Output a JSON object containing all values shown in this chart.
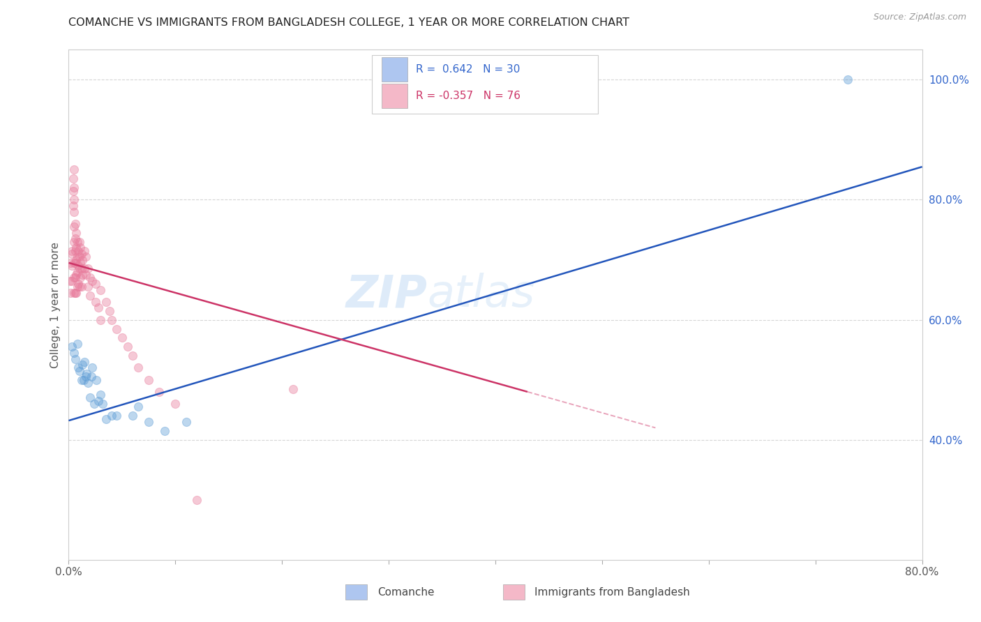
{
  "title": "COMANCHE VS IMMIGRANTS FROM BANGLADESH COLLEGE, 1 YEAR OR MORE CORRELATION CHART",
  "source": "Source: ZipAtlas.com",
  "ylabel": "College, 1 year or more",
  "xlim": [
    0.0,
    0.8
  ],
  "ylim": [
    0.2,
    1.05
  ],
  "xticks": [
    0.0,
    0.1,
    0.2,
    0.3,
    0.4,
    0.5,
    0.6,
    0.7,
    0.8
  ],
  "xticklabels": [
    "0.0%",
    "",
    "",
    "",
    "",
    "",
    "",
    "",
    "80.0%"
  ],
  "yticks_right": [
    0.4,
    0.6,
    0.8,
    1.0
  ],
  "yticklabels_right": [
    "40.0%",
    "60.0%",
    "80.0%",
    "100.0%"
  ],
  "legend_entries": [
    {
      "color": "#aec6f0",
      "text_color": "#3366cc",
      "label": "R =  0.642   N = 30"
    },
    {
      "color": "#f4b8c8",
      "text_color": "#cc3366",
      "label": "R = -0.357   N = 76"
    }
  ],
  "blue_scatter": [
    [
      0.003,
      0.555
    ],
    [
      0.005,
      0.545
    ],
    [
      0.006,
      0.535
    ],
    [
      0.008,
      0.56
    ],
    [
      0.009,
      0.52
    ],
    [
      0.01,
      0.515
    ],
    [
      0.012,
      0.5
    ],
    [
      0.013,
      0.525
    ],
    [
      0.014,
      0.5
    ],
    [
      0.015,
      0.53
    ],
    [
      0.016,
      0.505
    ],
    [
      0.017,
      0.51
    ],
    [
      0.018,
      0.495
    ],
    [
      0.02,
      0.47
    ],
    [
      0.021,
      0.505
    ],
    [
      0.022,
      0.52
    ],
    [
      0.024,
      0.46
    ],
    [
      0.026,
      0.5
    ],
    [
      0.028,
      0.465
    ],
    [
      0.03,
      0.475
    ],
    [
      0.032,
      0.46
    ],
    [
      0.035,
      0.435
    ],
    [
      0.04,
      0.44
    ],
    [
      0.045,
      0.44
    ],
    [
      0.06,
      0.44
    ],
    [
      0.065,
      0.455
    ],
    [
      0.075,
      0.43
    ],
    [
      0.09,
      0.415
    ],
    [
      0.11,
      0.43
    ],
    [
      0.73,
      1.0
    ]
  ],
  "pink_scatter": [
    [
      0.001,
      0.665
    ],
    [
      0.002,
      0.695
    ],
    [
      0.002,
      0.645
    ],
    [
      0.003,
      0.715
    ],
    [
      0.003,
      0.71
    ],
    [
      0.003,
      0.69
    ],
    [
      0.003,
      0.665
    ],
    [
      0.004,
      0.835
    ],
    [
      0.004,
      0.815
    ],
    [
      0.004,
      0.79
    ],
    [
      0.005,
      0.85
    ],
    [
      0.005,
      0.82
    ],
    [
      0.005,
      0.8
    ],
    [
      0.005,
      0.78
    ],
    [
      0.005,
      0.755
    ],
    [
      0.005,
      0.73
    ],
    [
      0.005,
      0.695
    ],
    [
      0.005,
      0.67
    ],
    [
      0.005,
      0.645
    ],
    [
      0.006,
      0.76
    ],
    [
      0.006,
      0.735
    ],
    [
      0.006,
      0.715
    ],
    [
      0.006,
      0.695
    ],
    [
      0.006,
      0.67
    ],
    [
      0.006,
      0.645
    ],
    [
      0.007,
      0.745
    ],
    [
      0.007,
      0.72
    ],
    [
      0.007,
      0.7
    ],
    [
      0.007,
      0.675
    ],
    [
      0.007,
      0.645
    ],
    [
      0.008,
      0.73
    ],
    [
      0.008,
      0.705
    ],
    [
      0.008,
      0.68
    ],
    [
      0.008,
      0.655
    ],
    [
      0.009,
      0.715
    ],
    [
      0.009,
      0.69
    ],
    [
      0.009,
      0.66
    ],
    [
      0.01,
      0.73
    ],
    [
      0.01,
      0.705
    ],
    [
      0.01,
      0.685
    ],
    [
      0.01,
      0.655
    ],
    [
      0.011,
      0.72
    ],
    [
      0.011,
      0.695
    ],
    [
      0.011,
      0.67
    ],
    [
      0.012,
      0.71
    ],
    [
      0.012,
      0.685
    ],
    [
      0.012,
      0.655
    ],
    [
      0.013,
      0.7
    ],
    [
      0.013,
      0.675
    ],
    [
      0.015,
      0.715
    ],
    [
      0.015,
      0.685
    ],
    [
      0.016,
      0.705
    ],
    [
      0.016,
      0.675
    ],
    [
      0.018,
      0.685
    ],
    [
      0.018,
      0.655
    ],
    [
      0.02,
      0.67
    ],
    [
      0.02,
      0.64
    ],
    [
      0.022,
      0.665
    ],
    [
      0.025,
      0.66
    ],
    [
      0.025,
      0.63
    ],
    [
      0.028,
      0.62
    ],
    [
      0.03,
      0.65
    ],
    [
      0.03,
      0.6
    ],
    [
      0.035,
      0.63
    ],
    [
      0.038,
      0.615
    ],
    [
      0.04,
      0.6
    ],
    [
      0.045,
      0.585
    ],
    [
      0.05,
      0.57
    ],
    [
      0.055,
      0.555
    ],
    [
      0.06,
      0.54
    ],
    [
      0.065,
      0.52
    ],
    [
      0.075,
      0.5
    ],
    [
      0.085,
      0.48
    ],
    [
      0.1,
      0.46
    ],
    [
      0.12,
      0.3
    ],
    [
      0.21,
      0.485
    ]
  ],
  "blue_line": {
    "x0": 0.0,
    "y0": 0.432,
    "x1": 0.8,
    "y1": 0.855
  },
  "pink_line_solid": {
    "x0": 0.0,
    "y0": 0.695,
    "x1": 0.43,
    "y1": 0.48
  },
  "pink_line_dash": {
    "x0": 0.43,
    "y0": 0.48,
    "x1": 0.55,
    "y1": 0.42
  },
  "watermark_line1": "ZIP",
  "watermark_line2": "atlas",
  "background_color": "#ffffff",
  "scatter_size": 75,
  "scatter_alpha": 0.4,
  "blue_color": "#5b9bd5",
  "pink_color": "#e8799a",
  "blue_line_color": "#2255bb",
  "pink_line_color": "#cc3366",
  "grid_color": "#cccccc",
  "grid_linestyle": "--",
  "grid_alpha": 0.8
}
